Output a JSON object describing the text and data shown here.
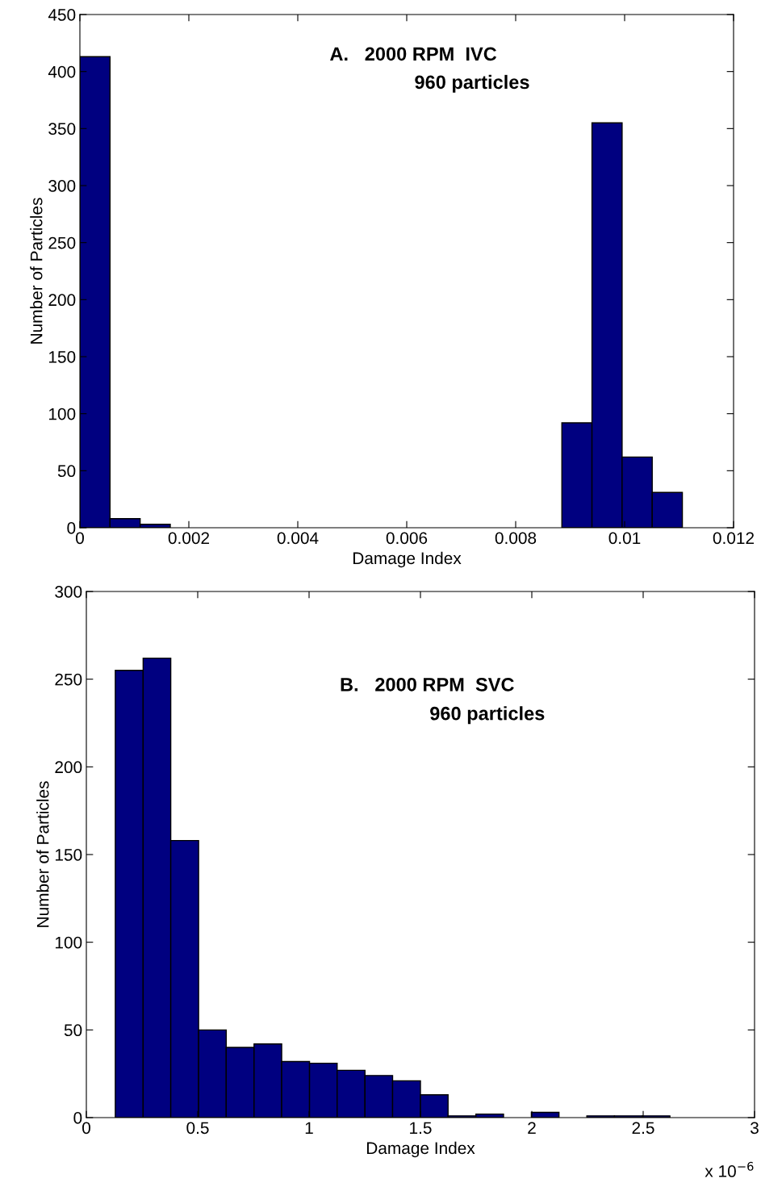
{
  "chart_data": [
    {
      "type": "histogram",
      "title": "A.   2000 RPM  IVC",
      "subtitle": "960 particles",
      "xlabel": "Damage Index",
      "ylabel": "Number of Particles",
      "color": "#000080",
      "bins": [
        0,
        0.000553,
        0.001106,
        0.001659,
        0.002212,
        0.002765,
        0.003318,
        0.003871,
        0.004424,
        0.004977,
        0.00553,
        0.006083,
        0.006636,
        0.007189,
        0.007742,
        0.008295,
        0.008848,
        0.009401,
        0.009954,
        0.010507,
        0.01106
      ],
      "values": [
        413,
        8,
        3,
        0,
        0,
        0,
        0,
        0,
        0,
        0,
        0,
        0,
        0,
        0,
        0,
        0,
        92,
        355,
        62,
        31
      ],
      "xlim": [
        0,
        0.012
      ],
      "xticks": [
        0,
        0.002,
        0.004,
        0.006,
        0.008,
        0.01,
        0.012
      ],
      "ylim": [
        0,
        450
      ],
      "yticks": [
        0,
        50,
        100,
        150,
        200,
        250,
        300,
        350,
        400,
        450
      ],
      "grid": false
    },
    {
      "type": "histogram",
      "title": "B.   2000 RPM  SVC",
      "subtitle": "960 particles",
      "xlabel": "Damage Index",
      "ylabel": "Number of Particles",
      "color": "#000080",
      "bins": [
        0.13,
        0.255,
        0.379,
        0.504,
        0.628,
        0.753,
        0.877,
        1.002,
        1.126,
        1.251,
        1.375,
        1.5,
        1.624,
        1.749,
        1.873,
        1.998,
        2.122,
        2.247,
        2.371,
        2.496,
        2.62
      ],
      "values": [
        255,
        262,
        158,
        50,
        40,
        42,
        32,
        31,
        27,
        24,
        21,
        13,
        1,
        2,
        0,
        3,
        0,
        1,
        1,
        1
      ],
      "xlim": [
        0,
        3
      ],
      "xticks": [
        0,
        0.5,
        1,
        1.5,
        2,
        2.5,
        3
      ],
      "ylim": [
        0,
        300
      ],
      "yticks": [
        0,
        50,
        100,
        150,
        200,
        250,
        300
      ],
      "grid": false,
      "annotations": [
        "x 10$^{−6}$"
      ]
    }
  ]
}
